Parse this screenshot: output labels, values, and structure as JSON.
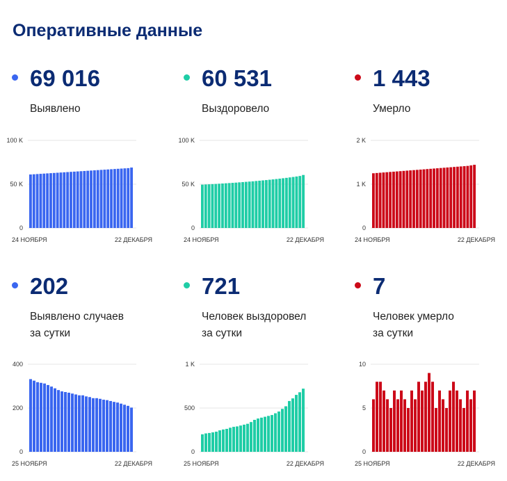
{
  "page_title": "Оперативные данные",
  "colors": {
    "blue": "#3a66f0",
    "green": "#1fcda6",
    "red": "#cc0a19",
    "grid": "#e6e6e6"
  },
  "cards": [
    {
      "value": "69 016",
      "label1": "Выявлено",
      "label2": "",
      "color": "blue"
    },
    {
      "value": "60 531",
      "label1": "Выздоровело",
      "label2": "",
      "color": "green"
    },
    {
      "value": "1 443",
      "label1": "Умерло",
      "label2": "",
      "color": "red"
    },
    {
      "value": "202",
      "label1": "Выявлено случаев",
      "label2": "за сутки",
      "color": "blue"
    },
    {
      "value": "721",
      "label1": "Человек выздоровел",
      "label2": "за сутки",
      "color": "green"
    },
    {
      "value": "7",
      "label1": "Человек умерло",
      "label2": "за сутки",
      "color": "red"
    }
  ],
  "chart_data": [
    {
      "type": "bar",
      "ylim": [
        0,
        100000
      ],
      "yticks": [
        0,
        50000,
        100000
      ],
      "ytick_labels": [
        "0",
        "50 K",
        "100 K"
      ],
      "x_start_label": "24 НОЯБРЯ",
      "x_end_label": "22 ДЕКАБРЯ",
      "values": [
        61100,
        61350,
        61600,
        61850,
        62100,
        62350,
        62600,
        62850,
        63100,
        63350,
        63600,
        63850,
        64100,
        64350,
        64600,
        64850,
        65100,
        65350,
        65600,
        65850,
        66100,
        66350,
        66600,
        66850,
        67100,
        67350,
        67600,
        67850,
        68100,
        68350,
        69016
      ]
    },
    {
      "type": "bar",
      "ylim": [
        0,
        100000
      ],
      "yticks": [
        0,
        50000,
        100000
      ],
      "ytick_labels": [
        "0",
        "50 K",
        "100 K"
      ],
      "x_start_label": "24 НОЯБРЯ",
      "x_end_label": "22 ДЕКАБРЯ",
      "values": [
        49500,
        49700,
        49900,
        50100,
        50300,
        50550,
        50800,
        51050,
        51300,
        51550,
        51800,
        52100,
        52400,
        52700,
        53000,
        53300,
        53650,
        54000,
        54350,
        54700,
        55100,
        55500,
        55900,
        56350,
        56800,
        57250,
        57750,
        58250,
        58800,
        59400,
        60531
      ]
    },
    {
      "type": "bar",
      "ylim": [
        0,
        2000
      ],
      "yticks": [
        0,
        1000,
        2000
      ],
      "ytick_labels": [
        "0",
        "1 K",
        "2 K"
      ],
      "x_start_label": "24 НОЯБРЯ",
      "x_end_label": "22 ДЕКАБРЯ",
      "values": [
        1250,
        1256,
        1262,
        1268,
        1274,
        1280,
        1286,
        1292,
        1298,
        1304,
        1310,
        1316,
        1322,
        1328,
        1334,
        1340,
        1346,
        1352,
        1358,
        1364,
        1370,
        1376,
        1382,
        1388,
        1394,
        1400,
        1406,
        1412,
        1418,
        1430,
        1443
      ]
    },
    {
      "type": "bar",
      "ylim": [
        0,
        400
      ],
      "yticks": [
        0,
        200,
        400
      ],
      "ytick_labels": [
        "0",
        "200",
        "400"
      ],
      "x_start_label": "25 НОЯБРЯ",
      "x_end_label": "22 ДЕКАБРЯ",
      "values": [
        332,
        325,
        318,
        315,
        312,
        305,
        298,
        290,
        282,
        276,
        273,
        270,
        266,
        262,
        258,
        258,
        253,
        250,
        245,
        245,
        242,
        238,
        236,
        232,
        228,
        225,
        220,
        215,
        210,
        202
      ]
    },
    {
      "type": "bar",
      "ylim": [
        0,
        1000
      ],
      "yticks": [
        0,
        500,
        1000
      ],
      "ytick_labels": [
        "0",
        "500",
        "1 K"
      ],
      "x_start_label": "25 НОЯБРЯ",
      "x_end_label": "22 ДЕКАБРЯ",
      "values": [
        200,
        210,
        215,
        222,
        230,
        245,
        255,
        262,
        275,
        285,
        290,
        300,
        310,
        320,
        340,
        365,
        380,
        390,
        400,
        410,
        420,
        440,
        460,
        490,
        520,
        580,
        610,
        650,
        680,
        721
      ]
    },
    {
      "type": "bar",
      "ylim": [
        0,
        10
      ],
      "yticks": [
        0,
        5,
        10
      ],
      "ytick_labels": [
        "0",
        "5",
        "10"
      ],
      "x_start_label": "25 НОЯБРЯ",
      "x_end_label": "22 ДЕКАБРЯ",
      "values": [
        6,
        8,
        8,
        7,
        6,
        5,
        7,
        6,
        7,
        6,
        5,
        7,
        6,
        8,
        7,
        8,
        9,
        8,
        5,
        7,
        6,
        5,
        7,
        8,
        7,
        6,
        5,
        7,
        6,
        7
      ]
    }
  ]
}
